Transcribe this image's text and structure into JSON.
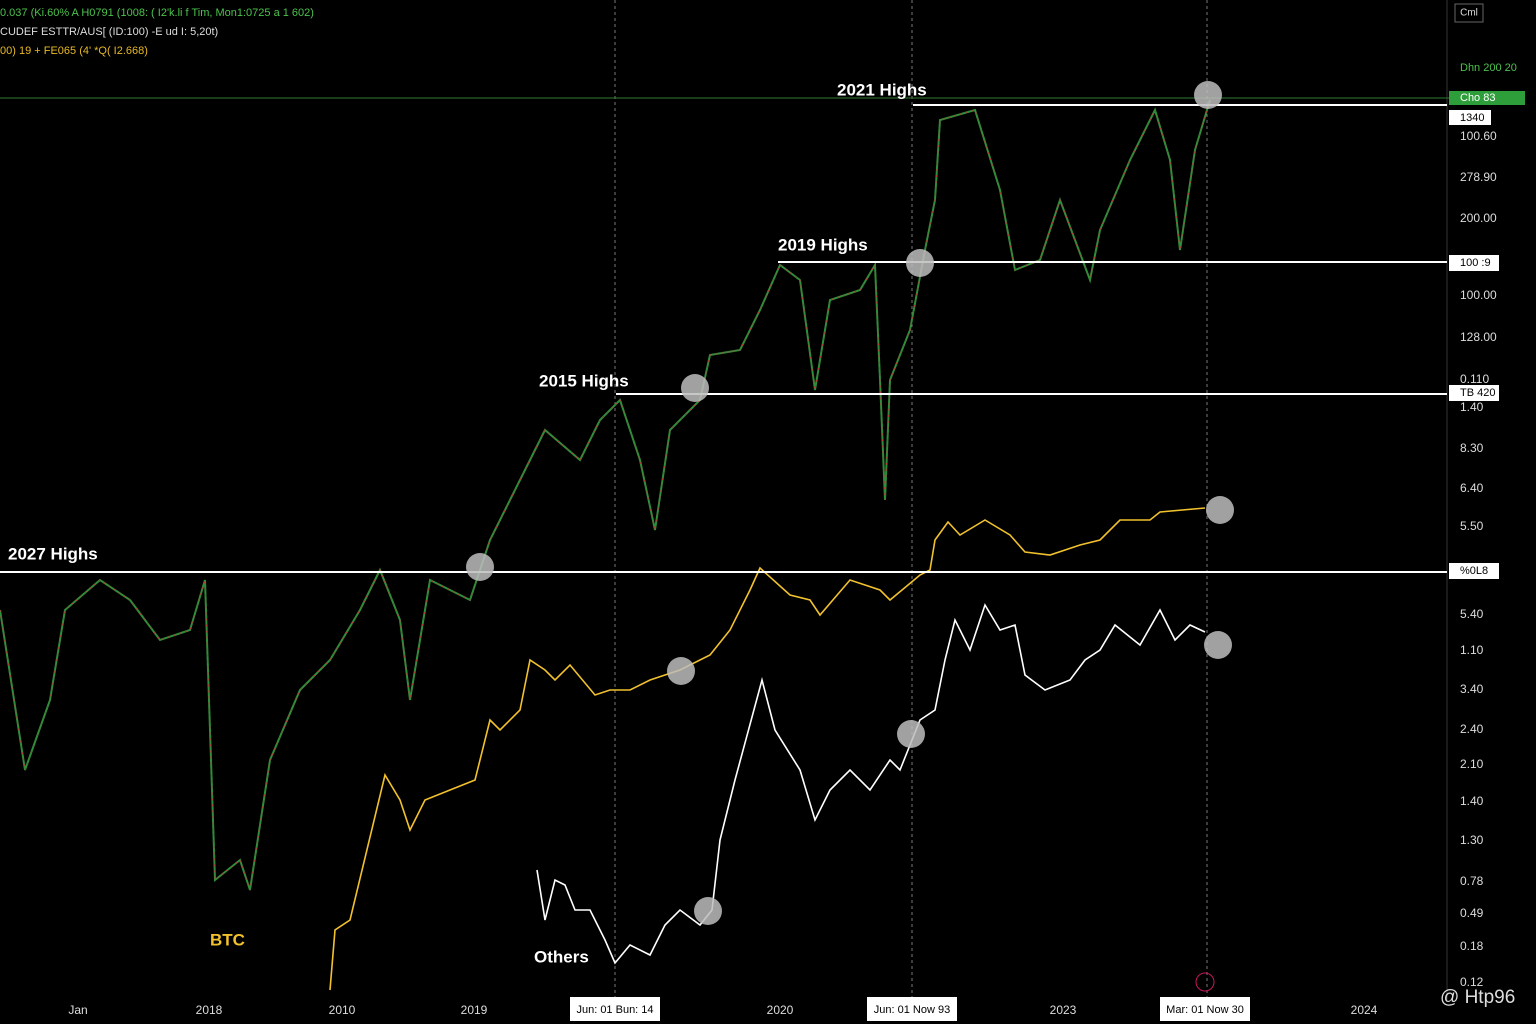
{
  "header": {
    "lines": [
      "0.037 (Ki.60% A H0791 (1008: ( I2'k.li f Tim, Mon1:0725 a 1 602)",
      "CUDEF ESTTR/AUS[ (ID:100) -E ud I: 5,20t)",
      "00) 19 + FE065 (4' *Q( I2.668)"
    ],
    "corner": "Cml"
  },
  "price_axis": {
    "top_labels": [
      "Dhn 200 20",
      "Cho 83",
      "1340"
    ],
    "labels": [
      "100.60",
      "278.90",
      "200.00",
      "100 :9",
      "100.00",
      "128.00",
      "0.110",
      "TB 420",
      "1.40",
      "8.30",
      "6.40",
      "5.50",
      "%0L8",
      "5.40",
      "1.10",
      "3.40",
      "2.40",
      "2.10",
      "1.40",
      "1.30",
      "0.78",
      "0.49",
      "0.18",
      "0.12"
    ]
  },
  "time_axis": {
    "labels": [
      "Jan",
      "2018",
      "2010",
      "2019",
      "Jun: 01 Bun: 14",
      "2020",
      "Jun: 01 Now 93",
      "2023",
      "Mar: 01 Now 30",
      "2024"
    ]
  },
  "annotations": {
    "highs": [
      "2021 Highs",
      "2019 Highs",
      "2015 Highs",
      "2027 Highs"
    ],
    "btc": "BTC",
    "others": "Others"
  },
  "watermark": "@ Htp96"
}
